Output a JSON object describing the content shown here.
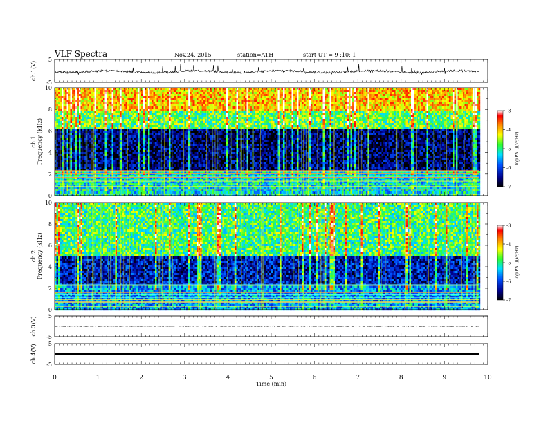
{
  "header": {
    "title": "VLF  Spectra",
    "date": "Nov.24, 2015",
    "station": "station=ATH",
    "start": "start  UT  =   9  :10: 1"
  },
  "colorbar_label": "log(PSD)(V²/Hz)",
  "chart_data": [
    {
      "type": "line",
      "panel": "ch.1(V)",
      "ylabel": "ch.1(V)",
      "ylim": [
        -5,
        5
      ],
      "yticks": [
        "5",
        "-5"
      ],
      "x_range_min": [
        0,
        9.8
      ],
      "description_level": -0.3
    },
    {
      "type": "heatmap",
      "panel": "ch.1 spectrogram",
      "ylabel": [
        "ch.1",
        "Frequency  (kHz)"
      ],
      "ylim": [
        0,
        10
      ],
      "yticks": [
        "0",
        "2",
        "4",
        "6",
        "8",
        "10"
      ],
      "x_range_min": [
        0,
        9.8
      ],
      "colorbar": {
        "label": "log(PSD)(V²/Hz)",
        "range": [
          -7,
          -3
        ],
        "ticks": [
          "-3",
          "-4",
          "-5",
          "-6",
          "-7"
        ]
      },
      "bands": [
        {
          "f_khz": [
            0,
            2.4
          ],
          "logpsd": -5.3
        },
        {
          "f_khz": [
            2.4,
            6.2
          ],
          "logpsd": -6.6
        },
        {
          "f_khz": [
            6.2,
            8.0
          ],
          "logpsd": -4.8
        },
        {
          "f_khz": [
            8.0,
            10
          ],
          "logpsd": -4.0
        }
      ]
    },
    {
      "type": "heatmap",
      "panel": "ch.2 spectrogram",
      "ylabel": [
        "ch.2",
        "Frequency  (kHz)"
      ],
      "ylim": [
        0,
        10
      ],
      "yticks": [
        "0",
        "2",
        "4",
        "6",
        "8",
        "10"
      ],
      "x_range_min": [
        0,
        9.8
      ],
      "colorbar": {
        "label": "log(PSD)(V²/Hz)",
        "range": [
          -7,
          -3
        ],
        "ticks": [
          "-3",
          "-4",
          "-5",
          "-6",
          "-7"
        ]
      },
      "bands": [
        {
          "f_khz": [
            0,
            2.4
          ],
          "logpsd": -5.6
        },
        {
          "f_khz": [
            2.4,
            5.0
          ],
          "logpsd": -6.3
        },
        {
          "f_khz": [
            5.0,
            10
          ],
          "logpsd": -4.9
        }
      ]
    },
    {
      "type": "line",
      "panel": "ch.3(V)",
      "ylabel": "ch.3(V)",
      "ylim": [
        -5,
        5
      ],
      "yticks": [
        "5",
        "-5"
      ],
      "x_range_min": [
        0,
        9.8
      ],
      "description_level": 0
    },
    {
      "type": "line",
      "panel": "ch.4(V)",
      "ylabel": "ch.4(V)",
      "ylim": [
        -5,
        5
      ],
      "yticks": [
        "5",
        "-5"
      ],
      "x_range_min": [
        0,
        9.8
      ],
      "description_level": 0
    }
  ],
  "xaxis": {
    "label": "Time  (min)",
    "range": [
      0,
      10
    ],
    "ticks": [
      "0",
      "1",
      "2",
      "3",
      "4",
      "5",
      "6",
      "7",
      "8",
      "9",
      "10"
    ]
  },
  "colors": {
    "axis": "#000000",
    "background": "#ffffff"
  }
}
